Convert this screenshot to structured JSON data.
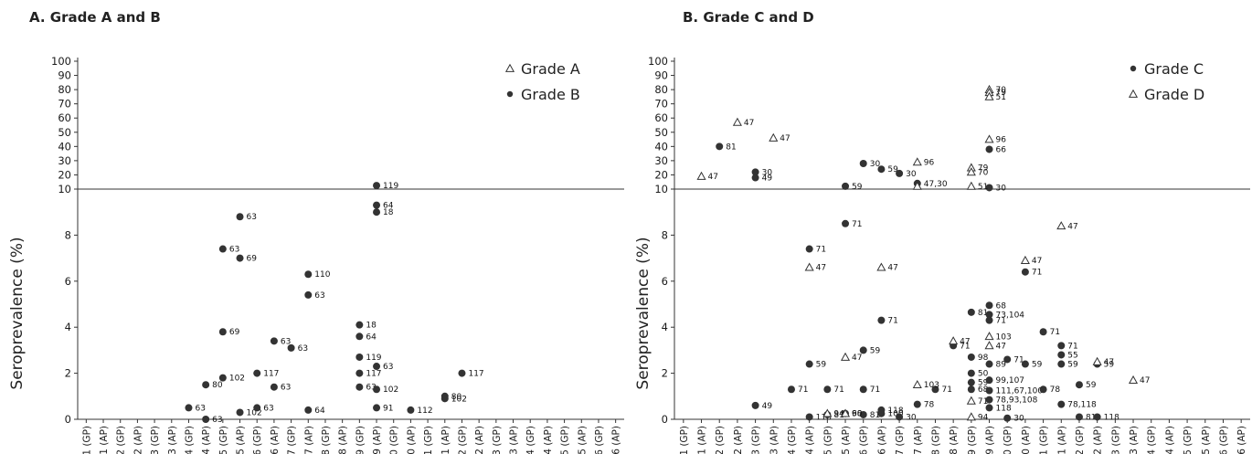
{
  "charts": [
    {
      "title": "A. Grade A and B",
      "ylabel": "Seroprevalence (%)",
      "legend": [
        {
          "marker": "triangle",
          "label": "Grade A"
        },
        {
          "marker": "circle",
          "label": "Grade B"
        }
      ]
    },
    {
      "title": "B. Grade C and D",
      "ylabel": "Seroprevalence (%)",
      "legend": [
        {
          "marker": "circle",
          "label": "Grade C"
        },
        {
          "marker": "triangle",
          "label": "Grade D"
        }
      ]
    }
  ],
  "chart_data": [
    {
      "type": "scatter",
      "title": "A. Grade A and B",
      "xlabel": "",
      "ylabel": "Seroprevalence (%)",
      "categories": [
        "H1 (GP)",
        "H1 (AP)",
        "H2 (GP)",
        "H2 (AP)",
        "H3 (GP)",
        "H3 (AP)",
        "H4 (GP)",
        "H4 (AP)",
        "H5 (GP)",
        "H5 (AP)",
        "H6 (GP)",
        "H6 (AP)",
        "H7 (GP)",
        "H7 (AP)",
        "H8 (GP)",
        "H8 (AP)",
        "H9 (GP)",
        "H9 (AP)",
        "H10 (GP)",
        "H10 (AP)",
        "H11 (GP)",
        "H11 (AP)",
        "H12 (GP)",
        "H12 (AP)",
        "H13 (GP)",
        "H13 (AP)",
        "H14 (GP)",
        "H14 (AP)",
        "H15 (GP)",
        "H15 (AP)",
        "H16 (GP)",
        "H16 (AP)"
      ],
      "y_axis": {
        "scale": "broken",
        "lower_range": [
          0,
          10
        ],
        "lower_ticks": [
          0,
          2,
          4,
          6,
          8
        ],
        "upper_range": [
          10,
          100
        ],
        "upper_ticks": [
          10,
          20,
          30,
          40,
          50,
          60,
          70,
          80,
          90,
          100
        ]
      },
      "grid": false,
      "legend_position": "top-right",
      "series": [
        {
          "name": "Grade A",
          "marker": "triangle",
          "points": []
        },
        {
          "name": "Grade B",
          "marker": "circle",
          "points": [
            {
              "x": "H4 (GP)",
              "y": 0.5,
              "label": "63"
            },
            {
              "x": "H4 (AP)",
              "y": 1.5,
              "label": "80"
            },
            {
              "x": "H4 (AP)",
              "y": 0.0,
              "label": "63"
            },
            {
              "x": "H5 (GP)",
              "y": 7.4,
              "label": "63"
            },
            {
              "x": "H5 (GP)",
              "y": 3.8,
              "label": "69"
            },
            {
              "x": "H5 (GP)",
              "y": 1.8,
              "label": "102"
            },
            {
              "x": "H5 (AP)",
              "y": 8.8,
              "label": "63"
            },
            {
              "x": "H5 (AP)",
              "y": 7.0,
              "label": "69"
            },
            {
              "x": "H5 (AP)",
              "y": 0.3,
              "label": "102"
            },
            {
              "x": "H6 (GP)",
              "y": 2.0,
              "label": "117"
            },
            {
              "x": "H6 (GP)",
              "y": 0.5,
              "label": "63"
            },
            {
              "x": "H6 (AP)",
              "y": 3.4,
              "label": "63"
            },
            {
              "x": "H6 (AP)",
              "y": 1.4,
              "label": "63"
            },
            {
              "x": "H7 (GP)",
              "y": 3.1,
              "label": "63"
            },
            {
              "x": "H7 (AP)",
              "y": 6.3,
              "label": "110"
            },
            {
              "x": "H7 (AP)",
              "y": 5.4,
              "label": "63"
            },
            {
              "x": "H7 (AP)",
              "y": 0.4,
              "label": "64"
            },
            {
              "x": "H9 (GP)",
              "y": 4.1,
              "label": "18"
            },
            {
              "x": "H9 (GP)",
              "y": 3.6,
              "label": "64"
            },
            {
              "x": "H9 (GP)",
              "y": 2.7,
              "label": "119"
            },
            {
              "x": "H9 (GP)",
              "y": 2.0,
              "label": "117"
            },
            {
              "x": "H9 (GP)",
              "y": 1.4,
              "label": "63"
            },
            {
              "x": "H9 (AP)",
              "y": 12.5,
              "label": "119"
            },
            {
              "x": "H9 (AP)",
              "y": 9.0,
              "label": "18"
            },
            {
              "x": "H9 (AP)",
              "y": 9.3,
              "label": "64"
            },
            {
              "x": "H9 (AP)",
              "y": 2.3,
              "label": "63"
            },
            {
              "x": "H9 (AP)",
              "y": 1.3,
              "label": "102"
            },
            {
              "x": "H9 (AP)",
              "y": 0.5,
              "label": "91"
            },
            {
              "x": "H10 (AP)",
              "y": 0.4,
              "label": "112"
            },
            {
              "x": "H11 (AP)",
              "y": 1.0,
              "label": "80"
            },
            {
              "x": "H11 (AP)",
              "y": 0.9,
              "label": "102"
            },
            {
              "x": "H12 (GP)",
              "y": 2.0,
              "label": "117"
            }
          ]
        }
      ]
    },
    {
      "type": "scatter",
      "title": "B. Grade C and D",
      "xlabel": "",
      "ylabel": "Seroprevalence (%)",
      "categories": [
        "H1 (GP)",
        "H1 (AP)",
        "H2 (GP)",
        "H2 (AP)",
        "H3 (GP)",
        "H3 (AP)",
        "H4 (GP)",
        "H4 (AP)",
        "H5 (GP)",
        "H5 (AP)",
        "H6 (GP)",
        "H6 (AP)",
        "H7 (GP)",
        "H7 (AP)",
        "H8 (GP)",
        "H8 (AP)",
        "H9 (GP)",
        "H9 (AP)",
        "H10 (GP)",
        "H10 (AP)",
        "H11 (GP)",
        "H11 (AP)",
        "H12 (GP)",
        "H12 (AP)",
        "H13 (GP)",
        "H13 (AP)",
        "H14 (GP)",
        "H14 (AP)",
        "H15 (GP)",
        "H15 (AP)",
        "H16 (GP)",
        "H16 (AP)"
      ],
      "y_axis": {
        "scale": "broken",
        "lower_range": [
          0,
          10
        ],
        "lower_ticks": [
          0,
          2,
          4,
          6,
          8
        ],
        "upper_range": [
          10,
          100
        ],
        "upper_ticks": [
          10,
          20,
          30,
          40,
          50,
          60,
          70,
          80,
          90,
          100
        ]
      },
      "grid": false,
      "legend_position": "top-right",
      "series": [
        {
          "name": "Grade C",
          "marker": "circle",
          "points": [
            {
              "x": "H2 (GP)",
              "y": 40,
              "label": "81"
            },
            {
              "x": "H3 (GP)",
              "y": 22,
              "label": "30"
            },
            {
              "x": "H3 (GP)",
              "y": 18,
              "label": "49"
            },
            {
              "x": "H3 (GP)",
              "y": 0.6,
              "label": "49"
            },
            {
              "x": "H4 (AP)",
              "y": 7.4,
              "label": "71"
            },
            {
              "x": "H4 (AP)",
              "y": 2.4,
              "label": "59"
            },
            {
              "x": "H4 (AP)",
              "y": 0.1,
              "label": "118"
            },
            {
              "x": "H4 (GP)",
              "y": 1.3,
              "label": "71"
            },
            {
              "x": "H5 (GP)",
              "y": 1.3,
              "label": "71"
            },
            {
              "x": "H5 (GP)",
              "y": 0.2,
              "label": "81"
            },
            {
              "x": "H5 (AP)",
              "y": 12,
              "label": "59"
            },
            {
              "x": "H5 (AP)",
              "y": 8.5,
              "label": "71"
            },
            {
              "x": "H5 (AP)",
              "y": 0.25,
              "label": "68"
            },
            {
              "x": "H6 (GP)",
              "y": 28,
              "label": "30"
            },
            {
              "x": "H6 (GP)",
              "y": 3.0,
              "label": "59"
            },
            {
              "x": "H6 (GP)",
              "y": 1.3,
              "label": "71"
            },
            {
              "x": "H6 (GP)",
              "y": 0.2,
              "label": "81"
            },
            {
              "x": "H6 (AP)",
              "y": 24,
              "label": "59"
            },
            {
              "x": "H6 (AP)",
              "y": 4.3,
              "label": "71"
            },
            {
              "x": "H6 (AP)",
              "y": 0.4,
              "label": "118"
            },
            {
              "x": "H6 (AP)",
              "y": 0.25,
              "label": "100"
            },
            {
              "x": "H7 (GP)",
              "y": 21,
              "label": "30"
            },
            {
              "x": "H7 (GP)",
              "y": 0.1,
              "label": "30"
            },
            {
              "x": "H7 (AP)",
              "y": 14,
              "label": "47,30"
            },
            {
              "x": "H7 (AP)",
              "y": 0.65,
              "label": "78"
            },
            {
              "x": "H8 (GP)",
              "y": 1.3,
              "label": "71"
            },
            {
              "x": "H8 (AP)",
              "y": 3.2,
              "label": "71"
            },
            {
              "x": "H9 (GP)",
              "y": 4.65,
              "label": "81"
            },
            {
              "x": "H9 (GP)",
              "y": 2.7,
              "label": "98"
            },
            {
              "x": "H9 (GP)",
              "y": 2.0,
              "label": "50"
            },
            {
              "x": "H9 (GP)",
              "y": 1.6,
              "label": "59"
            },
            {
              "x": "H9 (GP)",
              "y": 1.3,
              "label": "68"
            },
            {
              "x": "H9 (AP)",
              "y": 38,
              "label": "66"
            },
            {
              "x": "H9 (AP)",
              "y": 11,
              "label": "30"
            },
            {
              "x": "H9 (AP)",
              "y": 4.95,
              "label": "68"
            },
            {
              "x": "H9 (AP)",
              "y": 4.55,
              "label": "73,104"
            },
            {
              "x": "H9 (AP)",
              "y": 4.3,
              "label": "71"
            },
            {
              "x": "H9 (AP)",
              "y": 2.4,
              "label": "89"
            },
            {
              "x": "H9 (AP)",
              "y": 1.7,
              "label": "99,107"
            },
            {
              "x": "H9 (AP)",
              "y": 1.25,
              "label": "111,67,100"
            },
            {
              "x": "H9 (AP)",
              "y": 0.85,
              "label": "78,93,108"
            },
            {
              "x": "H9 (AP)",
              "y": 0.5,
              "label": "118"
            },
            {
              "x": "H10 (GP)",
              "y": 2.6,
              "label": "71"
            },
            {
              "x": "H10 (GP)",
              "y": 0.05,
              "label": "30"
            },
            {
              "x": "H10 (AP)",
              "y": 6.4,
              "label": "71"
            },
            {
              "x": "H10 (AP)",
              "y": 2.4,
              "label": "59"
            },
            {
              "x": "H11 (GP)",
              "y": 3.8,
              "label": "71"
            },
            {
              "x": "H11 (GP)",
              "y": 1.3,
              "label": "78"
            },
            {
              "x": "H11 (AP)",
              "y": 3.2,
              "label": "71"
            },
            {
              "x": "H11 (AP)",
              "y": 2.8,
              "label": "55"
            },
            {
              "x": "H11 (AP)",
              "y": 2.4,
              "label": "59"
            },
            {
              "x": "H11 (AP)",
              "y": 0.65,
              "label": "78,118"
            },
            {
              "x": "H12 (GP)",
              "y": 1.5,
              "label": "59"
            },
            {
              "x": "H12 (GP)",
              "y": 0.1,
              "label": "81"
            },
            {
              "x": "H12 (AP)",
              "y": 2.4,
              "label": "59"
            },
            {
              "x": "H12 (AP)",
              "y": 0.1,
              "label": "118"
            }
          ]
        },
        {
          "name": "Grade D",
          "marker": "triangle",
          "points": [
            {
              "x": "H1 (AP)",
              "y": 19,
              "label": "47"
            },
            {
              "x": "H2 (AP)",
              "y": 57,
              "label": "47"
            },
            {
              "x": "H3 (AP)",
              "y": 46,
              "label": "47"
            },
            {
              "x": "H4 (AP)",
              "y": 6.6,
              "label": "47"
            },
            {
              "x": "H5 (GP)",
              "y": 0.25,
              "label": "94"
            },
            {
              "x": "H5 (AP)",
              "y": 0.25,
              "label": "90"
            },
            {
              "x": "H5 (AP)",
              "y": 2.7,
              "label": "47"
            },
            {
              "x": "H6 (AP)",
              "y": 6.6,
              "label": "47"
            },
            {
              "x": "H7 (AP)",
              "y": 29,
              "label": "96"
            },
            {
              "x": "H7 (AP)",
              "y": 12,
              "label": ""
            },
            {
              "x": "H7 (AP)",
              "y": 1.5,
              "label": "103"
            },
            {
              "x": "H8 (AP)",
              "y": 3.4,
              "label": "47"
            },
            {
              "x": "H9 (GP)",
              "y": 25,
              "label": "79"
            },
            {
              "x": "H9 (GP)",
              "y": 22,
              "label": "70"
            },
            {
              "x": "H9 (GP)",
              "y": 12,
              "label": "51"
            },
            {
              "x": "H9 (GP)",
              "y": 0.8,
              "label": "71"
            },
            {
              "x": "H9 (AP)",
              "y": 80,
              "label": "70"
            },
            {
              "x": "H9 (AP)",
              "y": 78,
              "label": "79"
            },
            {
              "x": "H9 (AP)",
              "y": 75,
              "label": "51"
            },
            {
              "x": "H9 (AP)",
              "y": 45,
              "label": "96"
            },
            {
              "x": "H9 (AP)",
              "y": 3.6,
              "label": "103"
            },
            {
              "x": "H9 (AP)",
              "y": 3.2,
              "label": "47"
            },
            {
              "x": "H9 (GP)",
              "y": 0.1,
              "label": "94"
            },
            {
              "x": "H10 (AP)",
              "y": 6.9,
              "label": "47"
            },
            {
              "x": "H11 (AP)",
              "y": 8.4,
              "label": "47"
            },
            {
              "x": "H12 (AP)",
              "y": 2.5,
              "label": "47"
            },
            {
              "x": "H13 (AP)",
              "y": 1.7,
              "label": "47"
            }
          ]
        }
      ]
    }
  ]
}
